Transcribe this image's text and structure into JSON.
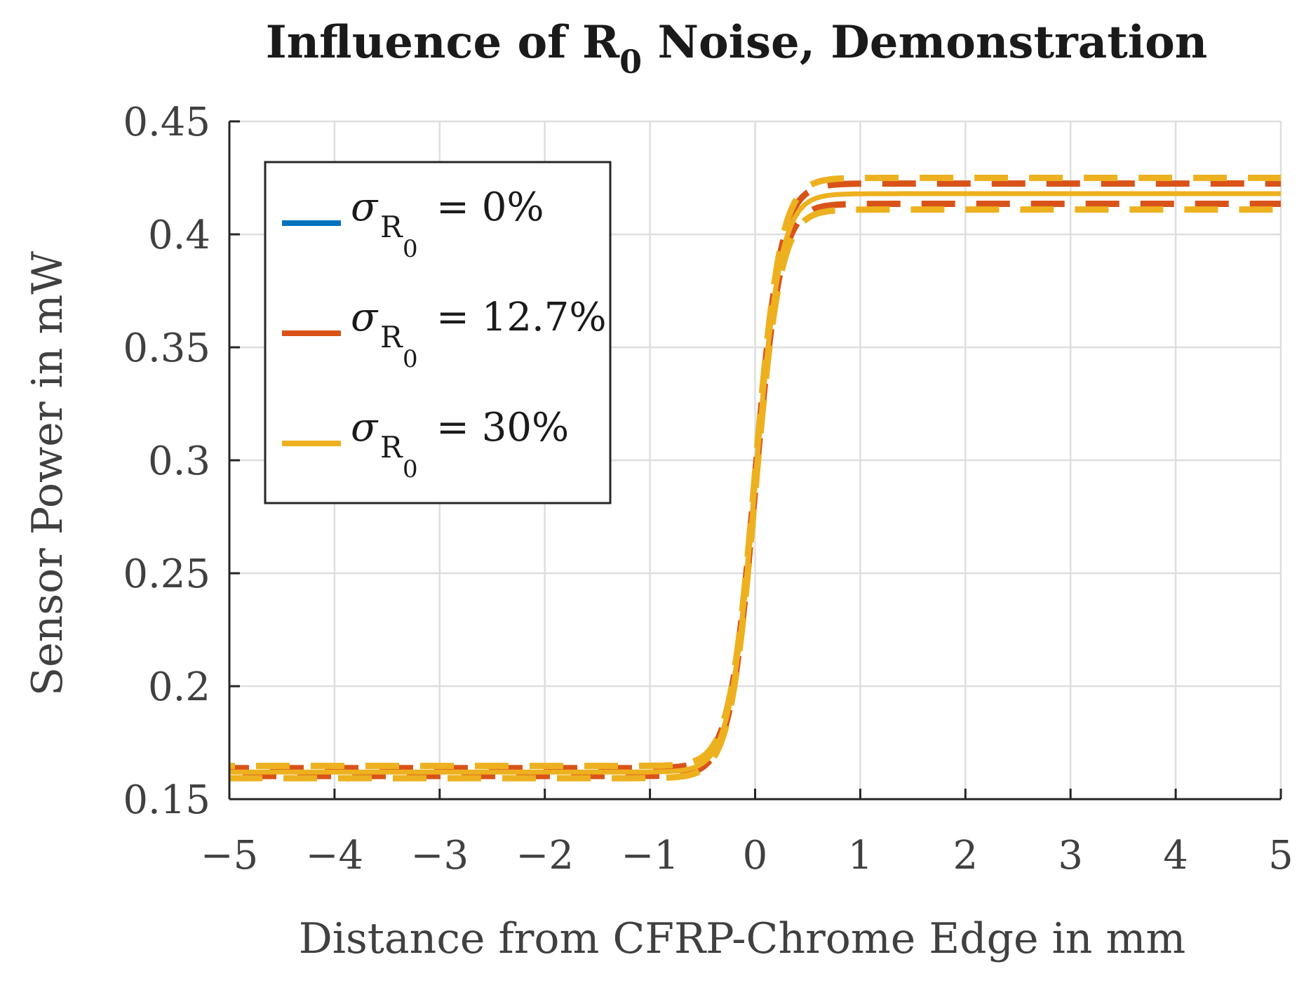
{
  "chart_data": {
    "type": "line",
    "title": "Influence of R",
    "title_subscript": "0",
    "title_suffix": " Noise, Demonstration",
    "xlabel": "Distance from CFRP-Chrome Edge in mm",
    "ylabel": "Sensor Power in mW",
    "xlim": [
      -5,
      5
    ],
    "ylim": [
      0.15,
      0.45
    ],
    "xticks": [
      -5,
      -4,
      -3,
      -2,
      -1,
      0,
      1,
      2,
      3,
      4,
      5
    ],
    "xtick_labels": [
      "−5",
      "−4",
      "−3",
      "−2",
      "−1",
      "0",
      "1",
      "2",
      "3",
      "4",
      "5"
    ],
    "yticks": [
      0.15,
      0.2,
      0.25,
      0.3,
      0.35,
      0.4,
      0.45
    ],
    "ytick_labels": [
      "0.15",
      "0.2",
      "0.25",
      "0.3",
      "0.35",
      "0.4",
      "0.45"
    ],
    "grid": true,
    "legend_position": "top-left",
    "model": {
      "low": 0.162,
      "high": 0.418,
      "center": 0.0,
      "width": 0.12
    },
    "series": [
      {
        "name": "σR0 = 0%",
        "symbol": "σ",
        "sub": "R",
        "subsub": "0",
        "value_label": "= 0%",
        "color": "#0072BD",
        "noise": 0.0,
        "band": 0.0
      },
      {
        "name": "σR0 = 12.7%",
        "symbol": "σ",
        "sub": "R",
        "subsub": "0",
        "value_label": "= 12.7%",
        "color": "#D95319",
        "noise": 0.127,
        "band": 0.0045
      },
      {
        "name": "σR0 = 30%",
        "symbol": "σ",
        "sub": "R",
        "subsub": "0",
        "value_label": "= 30%",
        "color": "#EDB120",
        "noise": 0.3,
        "band": 0.007
      }
    ]
  }
}
